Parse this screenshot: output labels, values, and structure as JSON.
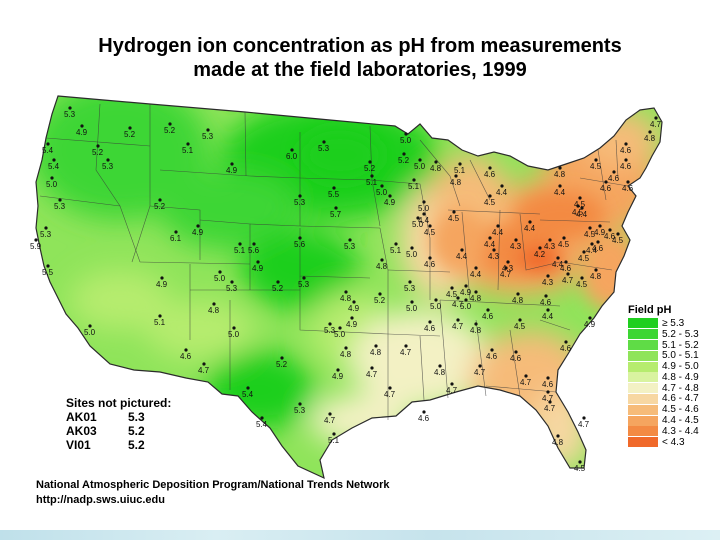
{
  "title": {
    "line1": "Hydrogen ion concentration as pH from measurements",
    "line2": "made at the field laboratories, 1999"
  },
  "legend": {
    "title": "Field pH",
    "items": [
      {
        "label": "≥ 5.3",
        "color": "#1fcf1f"
      },
      {
        "label": "5.2 - 5.3",
        "color": "#3cd634"
      },
      {
        "label": "5.1 - 5.2",
        "color": "#5fdc46"
      },
      {
        "label": "5.0 - 5.1",
        "color": "#8fe45a"
      },
      {
        "label": "4.9 - 5.0",
        "color": "#b6ec6e"
      },
      {
        "label": "4.8 - 4.9",
        "color": "#d9f3a0"
      },
      {
        "label": "4.7 - 4.8",
        "color": "#f3f1c4"
      },
      {
        "label": "4.6 - 4.7",
        "color": "#f7d7a2"
      },
      {
        "label": "4.5 - 4.6",
        "color": "#f6bb79"
      },
      {
        "label": "4.4 - 4.5",
        "color": "#f5a55f"
      },
      {
        "label": "4.3 - 4.4",
        "color": "#f38a43"
      },
      {
        "label": "< 4.3",
        "color": "#f0692a"
      }
    ]
  },
  "sites_not_pictured": {
    "heading": "Sites not pictured:",
    "sites": [
      {
        "id": "AK01",
        "value": "5.3"
      },
      {
        "id": "AK03",
        "value": "5.2"
      },
      {
        "id": "VI01",
        "value": "5.2"
      }
    ]
  },
  "credit": {
    "line1": "National Atmospheric Deposition Program/National Trends Network",
    "line2": "http://nadp.sws.uiuc.edu"
  },
  "stations": [
    {
      "label": "5.3"
    },
    {
      "label": "4.9"
    },
    {
      "label": "5.2"
    },
    {
      "label": "5.4"
    },
    {
      "label": "5.2"
    },
    {
      "label": "5.4"
    },
    {
      "label": "5.3"
    },
    {
      "label": "5.0"
    },
    {
      "label": "5.3"
    },
    {
      "label": "5.2"
    },
    {
      "label": "5.3"
    },
    {
      "label": "5.9"
    },
    {
      "label": "5.5"
    },
    {
      "label": "5.2"
    },
    {
      "label": "5.3"
    },
    {
      "label": "5.1"
    },
    {
      "label": "4.9"
    },
    {
      "label": "6.0"
    },
    {
      "label": "5.3"
    },
    {
      "label": "5.0"
    },
    {
      "label": "5.2"
    },
    {
      "label": "5.1"
    },
    {
      "label": "5.3"
    },
    {
      "label": "5.5"
    },
    {
      "label": "5.7"
    },
    {
      "label": "5.1"
    },
    {
      "label": "6.1"
    },
    {
      "label": "4.9"
    },
    {
      "label": "5.6"
    },
    {
      "label": "5.6"
    },
    {
      "label": "5.3"
    },
    {
      "label": "5.1"
    },
    {
      "label": "4.9"
    },
    {
      "label": "5.3"
    },
    {
      "label": "5.0"
    },
    {
      "label": "4.9"
    },
    {
      "label": "4.8"
    },
    {
      "label": "5.2"
    },
    {
      "label": "5.3"
    },
    {
      "label": "4.8"
    },
    {
      "label": "5.1"
    },
    {
      "label": "5.0"
    },
    {
      "label": "5.0"
    },
    {
      "label": "4.6"
    },
    {
      "label": "4.7"
    },
    {
      "label": "5.2"
    },
    {
      "label": "5.4"
    },
    {
      "label": "5.4"
    },
    {
      "label": "5.3"
    },
    {
      "label": "4.7"
    },
    {
      "label": "5.1"
    },
    {
      "label": "5.0"
    },
    {
      "label": "4.8"
    },
    {
      "label": "4.7"
    },
    {
      "label": "4.8"
    },
    {
      "label": "4.7"
    },
    {
      "label": "4.6"
    },
    {
      "label": "4.9"
    },
    {
      "label": "4.7"
    },
    {
      "label": "4.8"
    },
    {
      "label": "4.7"
    },
    {
      "label": "4.7"
    },
    {
      "label": "4.7"
    },
    {
      "label": "4.6"
    },
    {
      "label": "4.6"
    },
    {
      "label": "4.6"
    },
    {
      "label": "4.7"
    },
    {
      "label": "4.7"
    },
    {
      "label": "4.7"
    },
    {
      "label": "4.8"
    },
    {
      "label": "4.5"
    },
    {
      "label": "4.9"
    },
    {
      "label": "5.0"
    },
    {
      "label": "4.7"
    },
    {
      "label": "4.8"
    },
    {
      "label": "4.7"
    },
    {
      "label": "4.8"
    },
    {
      "label": "4.6"
    },
    {
      "label": "4.5"
    },
    {
      "label": "4.4"
    },
    {
      "label": "4.5"
    },
    {
      "label": "4.5"
    },
    {
      "label": "4.4"
    },
    {
      "label": "4.5"
    },
    {
      "label": "4.4"
    },
    {
      "label": "4.3"
    },
    {
      "label": "4.4"
    },
    {
      "label": "4.4"
    },
    {
      "label": "4.3"
    },
    {
      "label": "4.2"
    },
    {
      "label": "4.3"
    },
    {
      "label": "4.6"
    },
    {
      "label": "4.4"
    },
    {
      "label": "4.4"
    },
    {
      "label": "4.4"
    },
    {
      "label": "4.5"
    },
    {
      "label": "4.6"
    },
    {
      "label": "4.6"
    },
    {
      "label": "4.6"
    },
    {
      "label": "4.8"
    },
    {
      "label": "4.7"
    },
    {
      "label": "4.5"
    },
    {
      "label": "4.3"
    },
    {
      "label": "4.4"
    },
    {
      "label": "4.5"
    },
    {
      "label": "4.5"
    },
    {
      "label": "4.4"
    },
    {
      "label": "4.3"
    },
    {
      "label": "4.5"
    },
    {
      "label": "4.4"
    },
    {
      "label": "4.5"
    },
    {
      "label": "4.6"
    },
    {
      "label": "4.5"
    },
    {
      "label": "4.4"
    },
    {
      "label": "4.5"
    },
    {
      "label": "4.7"
    },
    {
      "label": "4.8"
    },
    {
      "label": "4.6"
    },
    {
      "label": "4.6"
    },
    {
      "label": "4.7"
    },
    {
      "label": "4.6"
    },
    {
      "label": "4.8"
    },
    {
      "label": "4.6"
    },
    {
      "label": "4.9"
    },
    {
      "label": "4.6"
    },
    {
      "label": "4.8"
    },
    {
      "label": "4.5"
    },
    {
      "label": "4.6"
    },
    {
      "label": "4.6"
    },
    {
      "label": "5.0"
    },
    {
      "label": "5.0"
    },
    {
      "label": "5.0"
    },
    {
      "label": "4.8"
    },
    {
      "label": "5.1"
    },
    {
      "label": "4.8"
    },
    {
      "label": "5.1"
    },
    {
      "label": "5.0"
    },
    {
      "label": "5.2"
    },
    {
      "label": "5.0"
    },
    {
      "label": "4.9"
    },
    {
      "label": "4.8"
    },
    {
      "label": "5.2"
    },
    {
      "label": "4.9"
    },
    {
      "label": "5.3"
    },
    {
      "label": "4.9"
    },
    {
      "label": "5.3"
    },
    {
      "label": "5.0"
    },
    {
      "label": "4.6"
    },
    {
      "label": "5.0"
    },
    {
      "label": "4.9"
    }
  ]
}
